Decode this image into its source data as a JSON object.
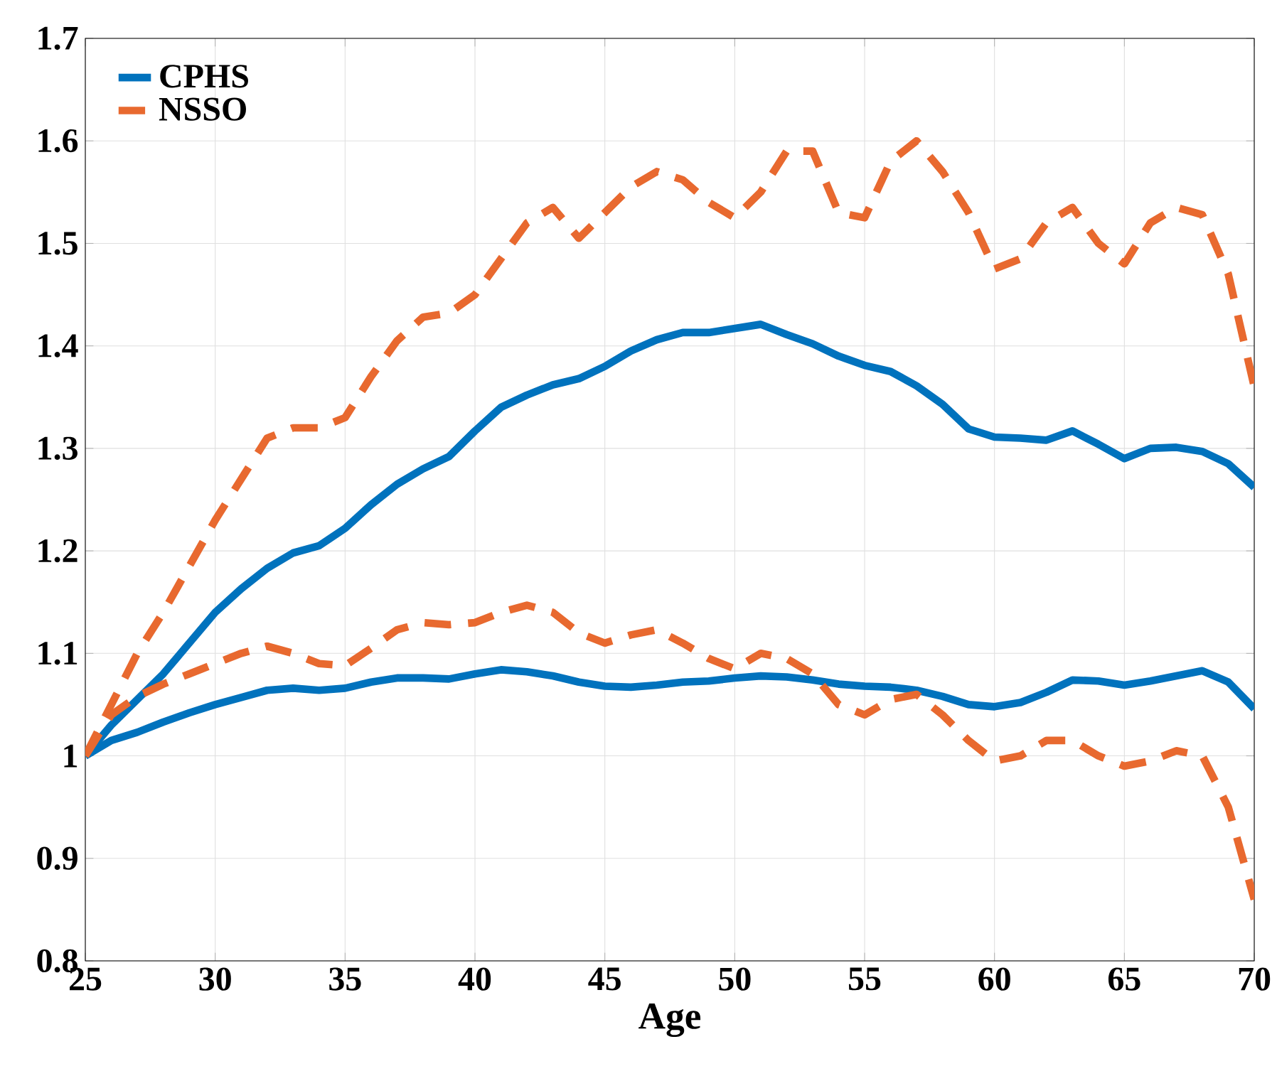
{
  "chart_data": {
    "type": "line",
    "xlabel": "Age",
    "x": [
      25,
      26,
      27,
      28,
      29,
      30,
      31,
      32,
      33,
      34,
      35,
      36,
      37,
      38,
      39,
      40,
      41,
      42,
      43,
      44,
      45,
      46,
      47,
      48,
      49,
      50,
      51,
      52,
      53,
      54,
      55,
      56,
      57,
      58,
      59,
      60,
      61,
      62,
      63,
      64,
      65,
      66,
      67,
      68,
      69,
      70
    ],
    "series": [
      {
        "name": "CPHS",
        "color": "#0072bd",
        "line_style": "solid",
        "values": [
          1.0,
          1.03,
          1.055,
          1.08,
          1.11,
          1.14,
          1.163,
          1.183,
          1.198,
          1.205,
          1.222,
          1.245,
          1.265,
          1.28,
          1.292,
          1.317,
          1.34,
          1.352,
          1.362,
          1.368,
          1.38,
          1.395,
          1.406,
          1.413,
          1.413,
          1.417,
          1.421,
          1.411,
          1.402,
          1.39,
          1.381,
          1.375,
          1.361,
          1.343,
          1.319,
          1.311,
          1.31,
          1.308,
          1.317,
          1.304,
          1.29,
          1.3,
          1.301,
          1.297,
          1.285,
          1.262
        ]
      },
      {
        "name": "NSSO",
        "color": "#e8692f",
        "line_style": "dashed",
        "values": [
          1.0,
          1.05,
          1.1,
          1.14,
          1.185,
          1.23,
          1.27,
          1.31,
          1.32,
          1.32,
          1.33,
          1.37,
          1.405,
          1.428,
          1.432,
          1.45,
          1.485,
          1.52,
          1.535,
          1.505,
          1.53,
          1.555,
          1.57,
          1.562,
          1.54,
          1.525,
          1.55,
          1.59,
          1.59,
          1.53,
          1.525,
          1.58,
          1.6,
          1.57,
          1.53,
          1.475,
          1.485,
          1.52,
          1.535,
          1.5,
          1.48,
          1.52,
          1.535,
          1.528,
          1.47,
          1.36
        ]
      },
      {
        "color": "#0072bd",
        "line_style": "solid",
        "values": [
          1.0,
          1.015,
          1.023,
          1.033,
          1.042,
          1.05,
          1.057,
          1.064,
          1.066,
          1.064,
          1.066,
          1.072,
          1.076,
          1.076,
          1.075,
          1.08,
          1.084,
          1.082,
          1.078,
          1.072,
          1.068,
          1.067,
          1.069,
          1.072,
          1.073,
          1.076,
          1.078,
          1.077,
          1.074,
          1.07,
          1.068,
          1.067,
          1.064,
          1.058,
          1.05,
          1.048,
          1.052,
          1.062,
          1.074,
          1.073,
          1.069,
          1.073,
          1.078,
          1.083,
          1.072,
          1.046
        ]
      },
      {
        "color": "#e8692f",
        "line_style": "dashed",
        "values": [
          1.0,
          1.04,
          1.058,
          1.07,
          1.08,
          1.09,
          1.1,
          1.107,
          1.1,
          1.09,
          1.088,
          1.105,
          1.123,
          1.13,
          1.128,
          1.13,
          1.14,
          1.147,
          1.14,
          1.12,
          1.11,
          1.118,
          1.123,
          1.11,
          1.095,
          1.085,
          1.1,
          1.095,
          1.08,
          1.05,
          1.04,
          1.055,
          1.06,
          1.04,
          1.015,
          0.995,
          1.0,
          1.015,
          1.015,
          1.0,
          0.99,
          0.995,
          1.005,
          1.0,
          0.95,
          0.86
        ]
      }
    ],
    "xlim": [
      25,
      70
    ],
    "xticks": [
      25,
      30,
      35,
      40,
      45,
      50,
      55,
      60,
      65,
      70
    ],
    "ylim": [
      0.8,
      1.7
    ],
    "yticks": [
      0.8,
      0.9,
      1,
      1.1,
      1.2,
      1.3,
      1.4,
      1.5,
      1.6,
      1.7
    ],
    "grid": true,
    "legend": "top left",
    "marker": "none"
  }
}
